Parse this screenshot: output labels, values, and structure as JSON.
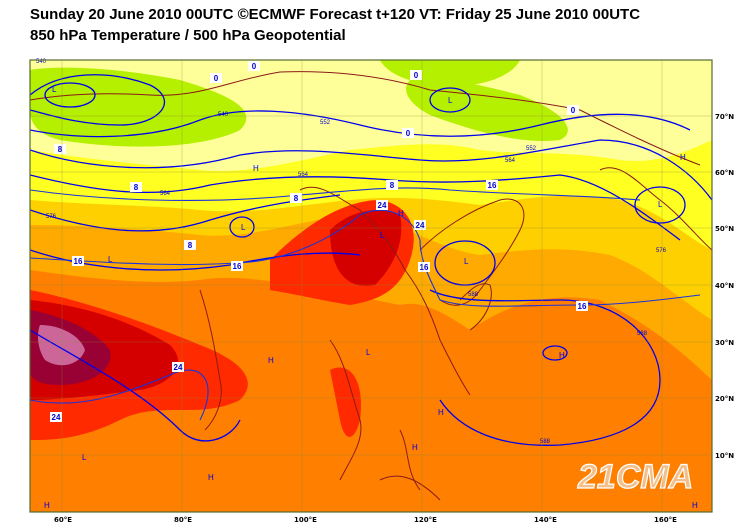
{
  "header": {
    "title_line1": "Sunday 20 June 2010 00UTC ©ECMWF Forecast t+120 VT: Friday 25 June 2010 00UTC",
    "title_line2": "850 hPa Temperature / 500 hPa Geopotential"
  },
  "map": {
    "projection": "cylindrical lat/lon",
    "lon_ticks": [
      "60°E",
      "80°E",
      "100°E",
      "120°E",
      "140°E",
      "160°E"
    ],
    "lat_ticks": [
      "70°N",
      "60°N",
      "50°N",
      "40°N",
      "30°N",
      "20°N",
      "10°N"
    ],
    "temperature_contour_labels": [
      "0",
      "0",
      "0",
      "0",
      "0",
      "8",
      "8",
      "8",
      "8",
      "8",
      "16",
      "16",
      "16",
      "16",
      "16",
      "24",
      "24",
      "24",
      "24"
    ],
    "geopotential_contour_labels": [
      "540",
      "540",
      "552",
      "552",
      "564",
      "564",
      "564",
      "576",
      "576",
      "588",
      "588",
      "588"
    ],
    "pressure_centres": [
      "L",
      "L",
      "L",
      "L",
      "L",
      "H",
      "H",
      "H",
      "H",
      "H",
      "H",
      "H",
      "L",
      "L",
      "L",
      "H",
      "H",
      "L",
      "H"
    ],
    "colors": {
      "contour_line": "#0000ee",
      "coastline": "#8b1a1a",
      "cold_green": "#b4f000",
      "pale_yellow": "#ffff99",
      "yellow": "#ffff22",
      "gold": "#ffd000",
      "orange": "#ffaa00",
      "dark_orange": "#ff7f00",
      "red": "#ff2a00",
      "crimson": "#d40000",
      "maroon": "#990033",
      "pink": "#cc6699"
    }
  },
  "logo": "21CMA"
}
